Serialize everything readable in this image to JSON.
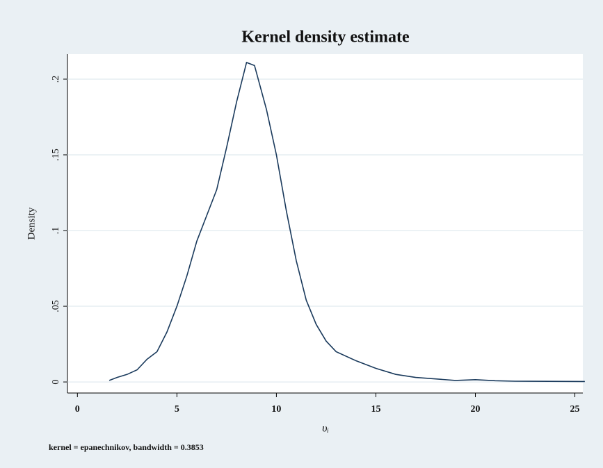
{
  "chart_data": {
    "type": "line",
    "title": "Kernel density estimate",
    "x_label": "υᵢ",
    "y_label": "Density",
    "note": "kernel = epanechnikov, bandwidth = 0.3853",
    "x": [
      1.6,
      2,
      2.5,
      3,
      3.5,
      4,
      4.5,
      5,
      5.5,
      6,
      6.5,
      7,
      7.5,
      8,
      8.5,
      8.9,
      9.5,
      10,
      10.5,
      11,
      11.5,
      12,
      12.5,
      13,
      14,
      15,
      16,
      17,
      18,
      19,
      20,
      21,
      22,
      25.5
    ],
    "series": [
      {
        "name": "Density",
        "color": "#1a3a5c",
        "values": [
          0.001,
          0.003,
          0.005,
          0.008,
          0.015,
          0.02,
          0.033,
          0.05,
          0.07,
          0.093,
          0.11,
          0.127,
          0.155,
          0.185,
          0.211,
          0.209,
          0.18,
          0.15,
          0.113,
          0.08,
          0.054,
          0.038,
          0.027,
          0.02,
          0.014,
          0.009,
          0.005,
          0.003,
          0.002,
          0.001,
          0.0015,
          0.0008,
          0.0005,
          0.0003
        ]
      }
    ],
    "xlim": [
      -0.5,
      25.4
    ],
    "ylim": [
      -0.0073,
      0.2165
    ],
    "xticks": [
      0,
      5,
      10,
      15,
      20,
      25
    ],
    "yticks": [
      0,
      {
        "value": 0.05,
        "label": ".05"
      },
      {
        "value": 0.1,
        "label": ".1"
      },
      {
        "value": 0.15,
        "label": ".15"
      },
      {
        "value": 0.2,
        "label": ".2"
      }
    ],
    "grid": true
  }
}
